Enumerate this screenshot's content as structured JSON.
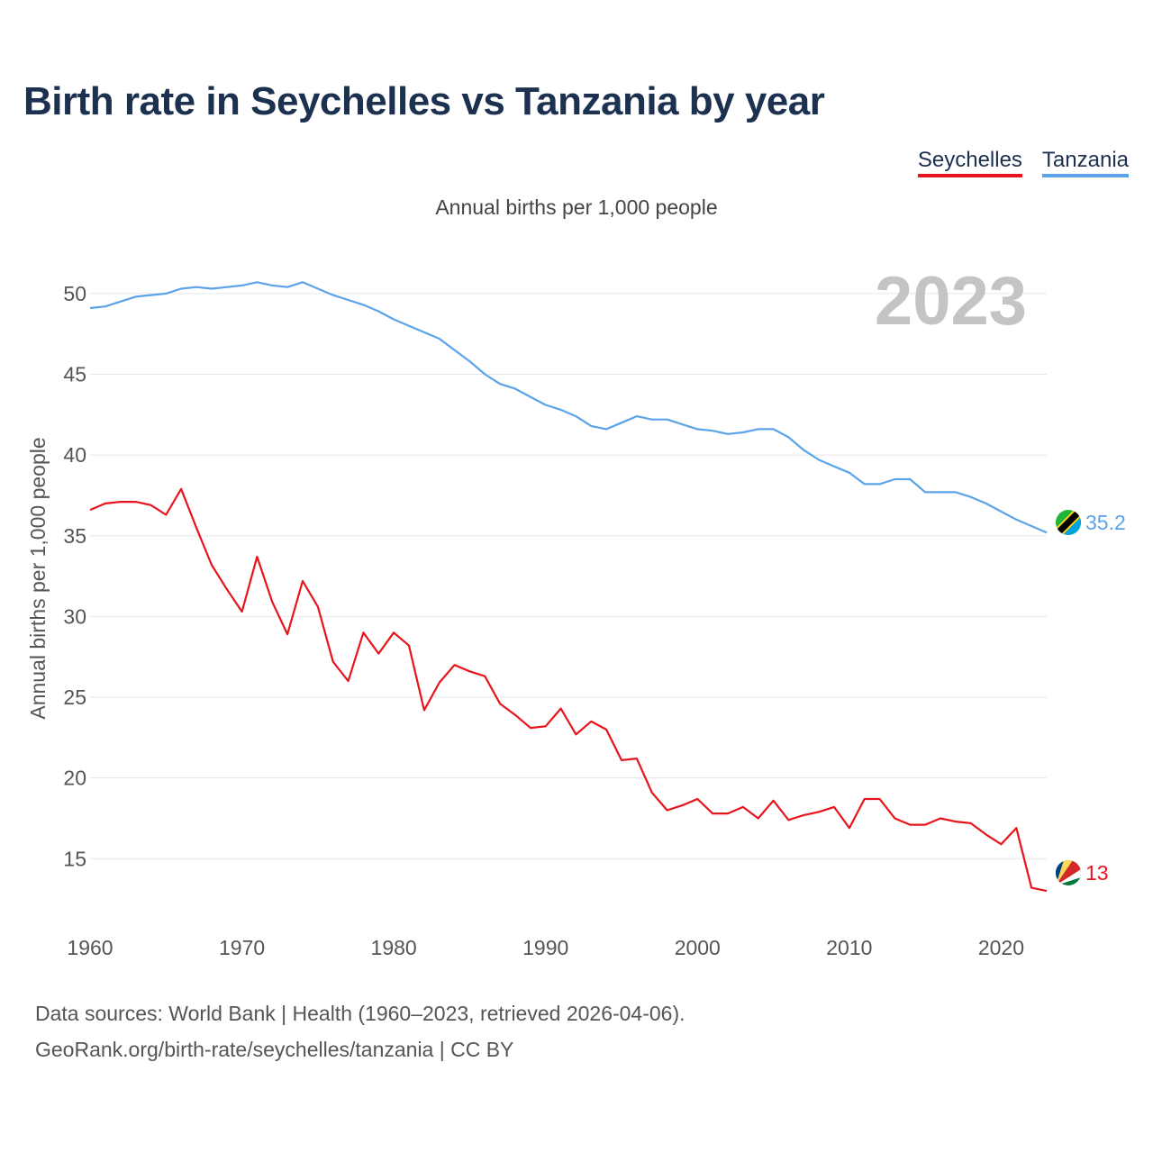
{
  "title": "Birth rate in Seychelles vs Tanzania by year",
  "subtitle": "Annual births per 1,000 people",
  "legend": {
    "seychelles": "Seychelles",
    "tanzania": "Tanzania"
  },
  "year_watermark": "2023",
  "footer": {
    "line1": "Data sources: World Bank | Health (1960–2023, retrieved 2026-04-06).",
    "line2": "GeoRank.org/birth-rate/seychelles/tanzania | CC BY"
  },
  "flags": {
    "seychelles": "seychelles-flag-icon",
    "tanzania": "tanzania-flag-icon"
  },
  "chart_data": {
    "type": "line",
    "title": "Birth rate in Seychelles vs Tanzania by year",
    "ylabel": "Annual births per 1,000 people",
    "xlabel": "",
    "xlim": [
      1960,
      2023
    ],
    "ylim": [
      11,
      52
    ],
    "yticks": [
      15,
      20,
      25,
      30,
      35,
      40,
      45,
      50
    ],
    "xticks": [
      1960,
      1970,
      1980,
      1990,
      2000,
      2010,
      2020
    ],
    "x": [
      1960,
      1961,
      1962,
      1963,
      1964,
      1965,
      1966,
      1967,
      1968,
      1969,
      1970,
      1971,
      1972,
      1973,
      1974,
      1975,
      1976,
      1977,
      1978,
      1979,
      1980,
      1981,
      1982,
      1983,
      1984,
      1985,
      1986,
      1987,
      1988,
      1989,
      1990,
      1991,
      1992,
      1993,
      1994,
      1995,
      1996,
      1997,
      1998,
      1999,
      2000,
      2001,
      2002,
      2003,
      2004,
      2005,
      2006,
      2007,
      2008,
      2009,
      2010,
      2011,
      2012,
      2013,
      2014,
      2015,
      2016,
      2017,
      2018,
      2019,
      2020,
      2021,
      2022,
      2023
    ],
    "series": [
      {
        "name": "Tanzania",
        "color": "#5ba3e8",
        "end_label": "35.2",
        "values": [
          49.1,
          49.2,
          49.5,
          49.8,
          49.9,
          50.0,
          50.3,
          50.4,
          50.3,
          50.4,
          50.5,
          50.7,
          50.5,
          50.4,
          50.7,
          50.3,
          49.9,
          49.6,
          49.3,
          48.9,
          48.4,
          48.0,
          47.6,
          47.2,
          46.5,
          45.8,
          45.0,
          44.4,
          44.1,
          43.6,
          43.1,
          42.8,
          42.4,
          41.8,
          41.6,
          42.0,
          42.4,
          42.2,
          42.2,
          41.9,
          41.6,
          41.5,
          41.3,
          41.4,
          41.6,
          41.6,
          41.1,
          40.3,
          39.7,
          39.3,
          38.9,
          38.2,
          38.2,
          38.5,
          38.5,
          37.7,
          37.7,
          37.7,
          37.4,
          37.0,
          36.5,
          36.0,
          35.6,
          35.2
        ]
      },
      {
        "name": "Seychelles",
        "color": "#e8141b",
        "end_label": "13",
        "values": [
          36.6,
          37.0,
          37.1,
          37.1,
          36.9,
          36.3,
          37.9,
          35.5,
          33.2,
          31.7,
          30.3,
          33.7,
          30.9,
          28.9,
          32.2,
          30.6,
          27.2,
          26.0,
          29.0,
          27.7,
          29.0,
          28.2,
          24.2,
          25.9,
          27.0,
          26.6,
          26.3,
          24.6,
          23.9,
          23.1,
          23.2,
          24.3,
          22.7,
          23.5,
          23.0,
          21.1,
          21.2,
          19.1,
          18.0,
          18.3,
          18.7,
          17.8,
          17.8,
          18.2,
          17.5,
          18.6,
          17.4,
          17.7,
          17.9,
          18.2,
          16.9,
          18.7,
          18.7,
          17.5,
          17.1,
          17.1,
          17.5,
          17.3,
          17.2,
          16.5,
          15.9,
          16.9,
          13.2,
          13.0
        ]
      }
    ]
  }
}
